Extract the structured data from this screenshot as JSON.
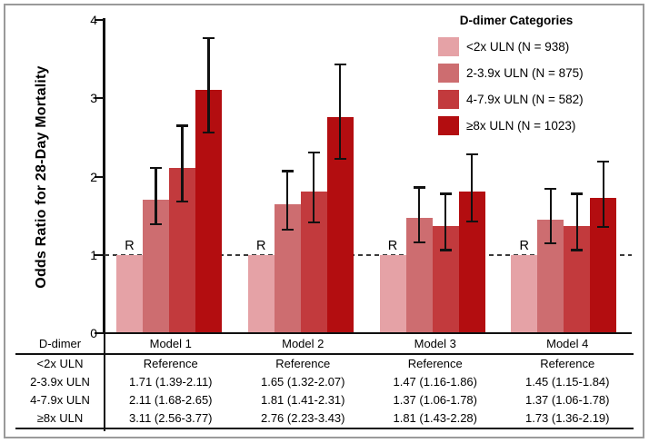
{
  "chart_data": {
    "type": "bar",
    "title": "",
    "ylabel": "Odds Ratio for 28-Day Mortality",
    "xlabel": "",
    "ylim": [
      0,
      4
    ],
    "y_ticks": [
      0,
      1,
      2,
      3,
      4
    ],
    "grid": false,
    "reference_line_y": 1,
    "reference_marker": "R",
    "categories": [
      "Model 1",
      "Model 2",
      "Model 3",
      "Model 4"
    ],
    "legend": {
      "title": "D-dimer Categories",
      "position": "top-right",
      "items": [
        {
          "label": "<2x ULN (N = 938)",
          "color": "#e5a2a6"
        },
        {
          "label": "2-3.9x ULN (N = 875)",
          "color": "#cd6d70"
        },
        {
          "label": "4-7.9x ULN (N = 582)",
          "color": "#c23a3d"
        },
        {
          "label": "≥8x ULN (N = 1023)",
          "color": "#b30d10"
        }
      ]
    },
    "series": [
      {
        "name": "<2x ULN",
        "color": "#e5a2a6",
        "reference": true,
        "values": [
          1.0,
          1.0,
          1.0,
          1.0
        ]
      },
      {
        "name": "2-3.9x ULN",
        "color": "#cd6d70",
        "values": [
          1.71,
          1.65,
          1.47,
          1.45
        ],
        "ci_low": [
          1.39,
          1.32,
          1.16,
          1.15
        ],
        "ci_high": [
          2.11,
          2.07,
          1.86,
          1.84
        ]
      },
      {
        "name": "4-7.9x ULN",
        "color": "#c23a3d",
        "values": [
          2.11,
          1.81,
          1.37,
          1.37
        ],
        "ci_low": [
          1.68,
          1.41,
          1.06,
          1.06
        ],
        "ci_high": [
          2.65,
          2.31,
          1.78,
          1.78
        ]
      },
      {
        "name": "≥8x ULN",
        "color": "#b30d10",
        "values": [
          3.11,
          2.76,
          1.81,
          1.73
        ],
        "ci_low": [
          2.56,
          2.23,
          1.43,
          1.36
        ],
        "ci_high": [
          3.77,
          3.43,
          2.28,
          2.19
        ]
      }
    ]
  },
  "table": {
    "header": [
      "D-dimer",
      "Model 1",
      "Model 2",
      "Model 3",
      "Model 4"
    ],
    "rows": [
      [
        "<2x ULN",
        "Reference",
        "Reference",
        "Reference",
        "Reference"
      ],
      [
        "2-3.9x ULN",
        "1.71 (1.39-2.11)",
        "1.65 (1.32-2.07)",
        "1.47 (1.16-1.86)",
        "1.45 (1.15-1.84)"
      ],
      [
        "4-7.9x ULN",
        "2.11 (1.68-2.65)",
        "1.81 (1.41-2.31)",
        "1.37 (1.06-1.78)",
        "1.37 (1.06-1.78)"
      ],
      [
        "≥8x ULN",
        "3.11 (2.56-3.77)",
        "2.76 (2.23-3.43)",
        "1.81 (1.43-2.28)",
        "1.73 (1.36-2.19)"
      ]
    ]
  },
  "colors": {
    "axis": "#111111",
    "reference_line": "#3a3a3a",
    "figure_border": "#9a9a9a",
    "background": "#ffffff"
  }
}
